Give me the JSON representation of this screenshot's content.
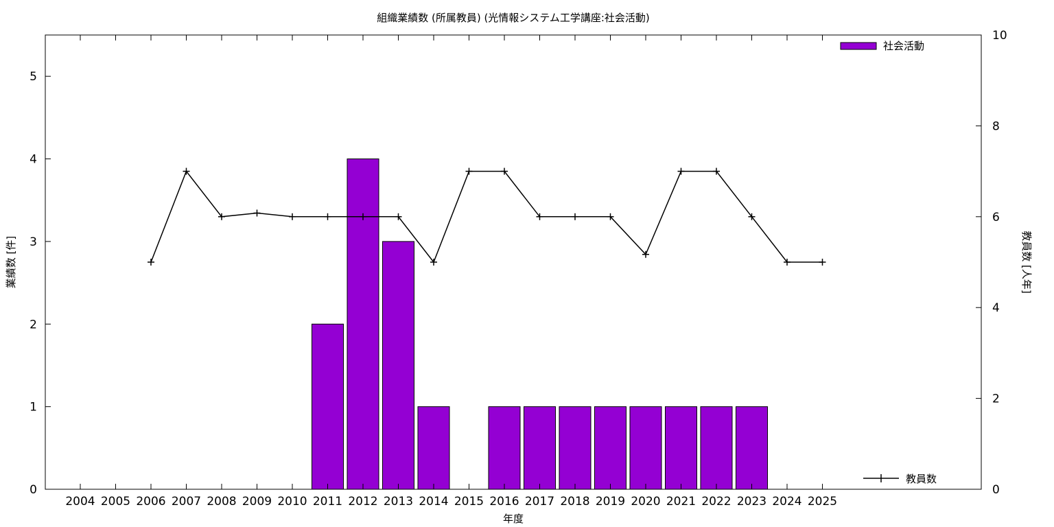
{
  "chart_data": {
    "type": "bar",
    "title": "組織業績数 (所属教員) (光情報システム工学講座:社会活動)",
    "xlabel": "年度",
    "ylabel": "業績数 [件]",
    "y2label": "教員数 [人年]",
    "categories": [
      "2004",
      "2005",
      "2006",
      "2007",
      "2008",
      "2009",
      "2010",
      "2011",
      "2012",
      "2013",
      "2014",
      "2015",
      "2016",
      "2017",
      "2018",
      "2019",
      "2020",
      "2021",
      "2022",
      "2023",
      "2024",
      "2025"
    ],
    "ylim": [
      0,
      5.5
    ],
    "yticks": [
      0,
      1,
      2,
      3,
      4,
      5
    ],
    "y2lim": [
      0,
      10
    ],
    "y2ticks": [
      0,
      2,
      4,
      6,
      8,
      10
    ],
    "bar_series": {
      "name": "社会活動",
      "color": "#9400d3",
      "values": [
        0,
        0,
        0,
        0,
        0,
        0,
        0,
        2,
        4,
        3,
        1,
        0,
        1,
        1,
        1,
        1,
        1,
        1,
        1,
        1,
        0,
        0
      ]
    },
    "line_series": {
      "name": "教員数",
      "color": "#000000",
      "axis": "right",
      "values": [
        null,
        null,
        5,
        7,
        6,
        6.08,
        6,
        6,
        6,
        6,
        5,
        7,
        7,
        6,
        6,
        6,
        5.17,
        7,
        7,
        6,
        5,
        5
      ]
    },
    "legend": [
      "top-right",
      "bottom-right"
    ],
    "grid": false
  }
}
